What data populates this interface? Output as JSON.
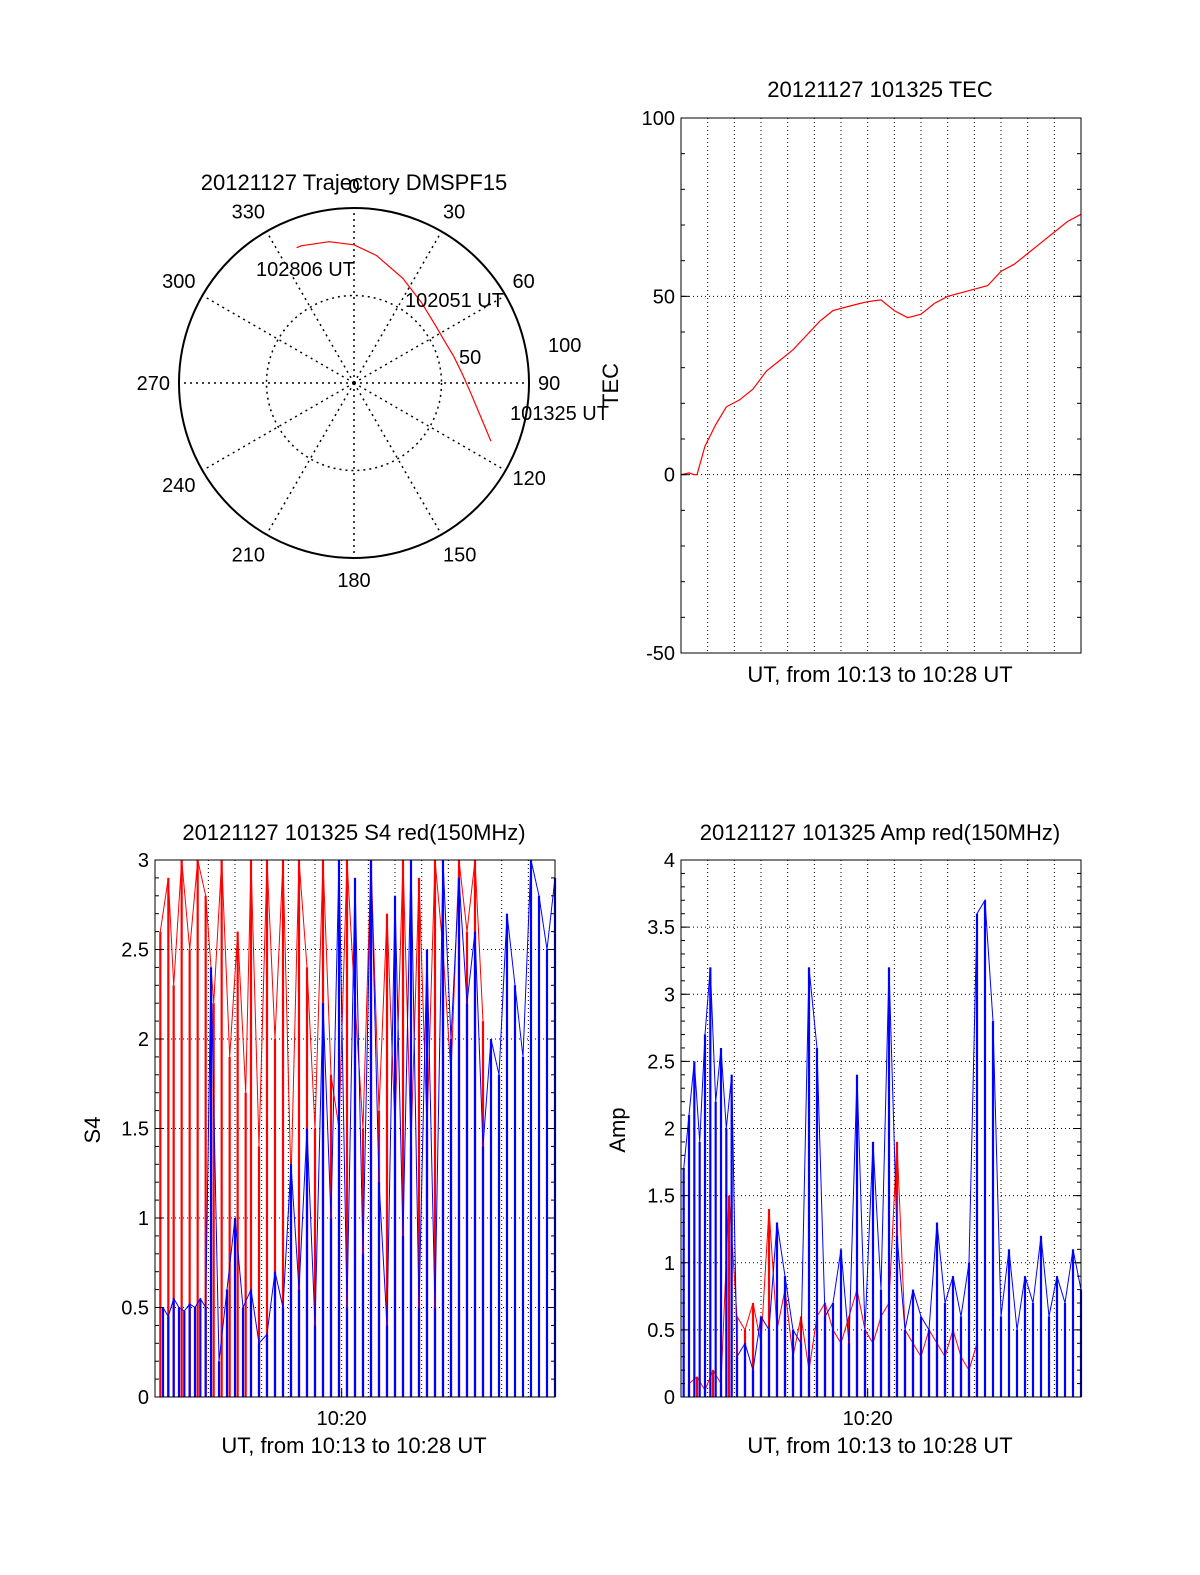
{
  "colors": {
    "red": "#ff0000",
    "blue": "#0000ff",
    "axis": "#000000",
    "grid": "#000000"
  },
  "chart_data": [
    {
      "id": "trajectory",
      "type": "polar",
      "title": "20121127 Trajectory DMSPF15",
      "azimuth_labels": [
        "0",
        "30",
        "60",
        "90",
        "120",
        "150",
        "180",
        "210",
        "240",
        "270",
        "300",
        "330"
      ],
      "radius_labels": [
        "50",
        "100"
      ],
      "radial_max": 100,
      "grid": true,
      "series": [
        {
          "color": "red",
          "points": [
            [
              113,
              85
            ],
            [
              105,
              75
            ],
            [
              95,
              67
            ],
            [
              85,
              62
            ],
            [
              75,
              59
            ],
            [
              65,
              57
            ],
            [
              55,
              57
            ],
            [
              40,
              60
            ],
            [
              25,
              66
            ],
            [
              10,
              74
            ],
            [
              0,
              79
            ],
            [
              -10,
              82
            ],
            [
              -21,
              84
            ],
            [
              -23,
              84
            ]
          ]
        }
      ],
      "annotations": [
        {
          "text": "102806 UT",
          "az": -22,
          "r": 84
        },
        {
          "text": "102051 UT",
          "az": 53,
          "r": 58
        },
        {
          "text": "101325 UT",
          "az": 113,
          "r": 85
        }
      ]
    },
    {
      "id": "tec",
      "type": "line",
      "title": "20121127 101325 TEC",
      "xlabel": "UT, from 10:13 to 10:28 UT",
      "ylabel": "TEC",
      "ylim": [
        -50,
        100
      ],
      "yticks": [
        -50,
        0,
        50,
        100
      ],
      "xlim": [
        0,
        15
      ],
      "grid": true,
      "series": [
        {
          "color": "red",
          "x": [
            0,
            0.3,
            0.5,
            0.6,
            0.9,
            1.3,
            1.7,
            2.2,
            2.7,
            3.2,
            3.7,
            4.2,
            4.7,
            5.2,
            5.7,
            6.2,
            6.7,
            7.0,
            7.5,
            8.0,
            8.5,
            9.0,
            9.5,
            10.0,
            10.5,
            11.0,
            11.5,
            12.0,
            12.5,
            13.0,
            13.5,
            14.0,
            14.5,
            15.0
          ],
          "y": [
            0,
            0.5,
            0,
            0,
            8,
            14,
            19,
            21,
            24,
            29,
            32,
            35,
            39,
            43,
            46,
            47,
            48,
            48.5,
            49,
            46,
            44,
            45,
            48,
            50,
            51,
            52,
            53,
            57,
            59,
            62,
            65,
            68,
            71,
            73
          ]
        }
      ]
    },
    {
      "id": "s4",
      "type": "line",
      "title": "20121127 101325 S4 red(150MHz)",
      "xlabel": "UT, from 10:13 to 10:28 UT",
      "ylabel": "S4",
      "ylim": [
        0,
        3
      ],
      "yticks": [
        0,
        0.5,
        1,
        1.5,
        2,
        2.5,
        3
      ],
      "xlim": [
        0,
        15
      ],
      "xticks": [
        {
          "value": 7,
          "label": "10:20"
        }
      ],
      "grid": true,
      "series": [
        {
          "color": "red",
          "x": [
            0.2,
            0.5,
            0.7,
            1.0,
            1.3,
            1.6,
            1.9,
            2.2,
            2.5,
            2.8,
            3.1,
            3.4,
            3.6,
            3.9,
            4.2,
            4.5,
            4.8,
            5.1,
            5.4,
            5.7,
            6.0,
            6.3,
            6.6,
            6.9,
            7.2,
            7.5,
            7.8,
            8.1,
            8.4,
            8.7,
            9.0,
            9.3,
            9.6,
            9.9,
            10.2,
            10.5,
            10.8,
            11.1,
            11.4,
            11.7,
            12.0,
            12.3
          ],
          "y": [
            2.6,
            2.9,
            2.3,
            3.0,
            2.5,
            3.0,
            2.8,
            2.2,
            3.0,
            1.9,
            2.6,
            1.7,
            3.0,
            1.4,
            3.0,
            2.0,
            3.0,
            1.2,
            3.0,
            2.4,
            1.5,
            3.0,
            1.8,
            1.5,
            3.0,
            2.2,
            1.5,
            3.0,
            1.6,
            2.7,
            1.5,
            3.0,
            1.4,
            2.9,
            1.5,
            3.0,
            2.5,
            1.8,
            3.0,
            2.6,
            3.0,
            2.1
          ]
        },
        {
          "color": "blue",
          "x": [
            0.3,
            0.5,
            0.7,
            0.9,
            1.1,
            1.3,
            1.5,
            1.7,
            1.9,
            2.1,
            2.4,
            2.7,
            3.0,
            3.3,
            3.6,
            3.9,
            4.2,
            4.5,
            4.8,
            5.1,
            5.4,
            5.7,
            6.0,
            6.3,
            6.6,
            6.9,
            7.2,
            7.5,
            7.8,
            8.1,
            8.4,
            8.7,
            9.0,
            9.3,
            9.6,
            9.9,
            10.2,
            10.5,
            10.8,
            11.1,
            11.4,
            11.7,
            12.0,
            12.3,
            12.6,
            12.9,
            13.2,
            13.5,
            13.8,
            14.1,
            14.4,
            14.7,
            15.0
          ],
          "y": [
            0.5,
            0.45,
            0.55,
            0.5,
            0.48,
            0.52,
            0.5,
            0.55,
            0.5,
            2.4,
            0.2,
            0.6,
            1.0,
            0.5,
            0.6,
            0.3,
            0.35,
            0.7,
            0.5,
            1.3,
            0.6,
            1.5,
            0.4,
            2.2,
            1.0,
            3.0,
            0.5,
            2.9,
            0.8,
            3.0,
            1.2,
            0.4,
            2.8,
            0.9,
            3.0,
            0.5,
            2.5,
            0.5,
            3.0,
            2.0,
            2.9,
            2.2,
            2.6,
            1.4,
            2.0,
            1.8,
            2.7,
            2.3,
            1.9,
            3.0,
            2.8,
            2.5,
            2.9
          ]
        }
      ]
    },
    {
      "id": "amp",
      "type": "line",
      "title": "20121127 101325 Amp red(150MHz)",
      "xlabel": "UT, from 10:13 to 10:28 UT",
      "ylabel": "Amp",
      "ylim": [
        0,
        4
      ],
      "yticks": [
        0,
        0.5,
        1,
        1.5,
        2,
        2.5,
        3,
        3.5,
        4
      ],
      "xlim": [
        0,
        15
      ],
      "xticks": [
        {
          "value": 7,
          "label": "10:20"
        }
      ],
      "grid": true,
      "series": [
        {
          "color": "red",
          "x": [
            0.3,
            0.6,
            0.9,
            1.2,
            1.5,
            1.8,
            2.1,
            2.4,
            2.7,
            3.0,
            3.3,
            3.6,
            3.9,
            4.2,
            4.5,
            4.8,
            5.1,
            5.4,
            5.7,
            6.0,
            6.3,
            6.6,
            6.9,
            7.2,
            7.5,
            7.8,
            8.1,
            8.4,
            8.7,
            9.0,
            9.3,
            9.6,
            9.9,
            10.2,
            10.5,
            10.8,
            11.1
          ],
          "y": [
            0.1,
            0.15,
            0.05,
            0.2,
            0.1,
            1.5,
            0.6,
            0.5,
            0.7,
            0.4,
            1.4,
            0.5,
            0.8,
            0.3,
            0.6,
            0.2,
            0.6,
            0.7,
            0.5,
            0.4,
            0.6,
            0.8,
            0.5,
            0.4,
            0.6,
            0.7,
            1.9,
            0.5,
            0.4,
            0.3,
            0.5,
            0.4,
            0.3,
            0.5,
            0.3,
            0.2,
            0.4
          ]
        },
        {
          "color": "blue",
          "x": [
            0.1,
            0.3,
            0.5,
            0.7,
            0.9,
            1.1,
            1.3,
            1.5,
            1.7,
            1.9,
            2.1,
            2.4,
            2.7,
            3.0,
            3.3,
            3.6,
            3.9,
            4.2,
            4.5,
            4.8,
            5.1,
            5.4,
            5.7,
            6.0,
            6.3,
            6.6,
            6.9,
            7.2,
            7.5,
            7.8,
            8.1,
            8.4,
            8.7,
            9.0,
            9.3,
            9.6,
            9.9,
            10.2,
            10.5,
            10.8,
            11.1,
            11.4,
            11.7,
            12.0,
            12.3,
            12.6,
            12.9,
            13.2,
            13.5,
            13.8,
            14.1,
            14.4,
            14.7,
            15.0
          ],
          "y": [
            1.7,
            2.1,
            2.5,
            1.9,
            2.7,
            3.2,
            2.2,
            2.6,
            2.0,
            2.4,
            0.3,
            0.4,
            0.2,
            0.6,
            0.5,
            1.3,
            0.9,
            0.5,
            0.4,
            3.2,
            2.6,
            0.6,
            0.7,
            1.1,
            0.4,
            2.4,
            0.5,
            1.9,
            0.8,
            3.2,
            1.2,
            0.5,
            0.8,
            0.6,
            0.5,
            1.3,
            0.7,
            0.9,
            0.6,
            1.0,
            3.6,
            3.7,
            2.8,
            0.6,
            1.1,
            0.5,
            0.9,
            0.7,
            1.2,
            0.6,
            0.9,
            0.7,
            1.1,
            0.8
          ]
        }
      ]
    }
  ]
}
